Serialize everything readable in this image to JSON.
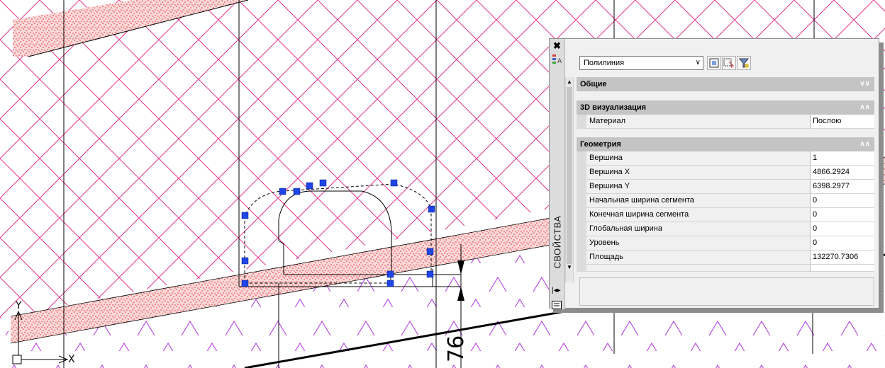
{
  "drawing": {
    "dimension_value": "76",
    "ucs_y_label": "Y",
    "ucs_x_label": "X"
  },
  "palette": {
    "title": "СВОЙСТВА",
    "object_type": "Полилиния",
    "categories": {
      "general": {
        "label": "Общие"
      },
      "visualization": {
        "label": "3D визуализация"
      },
      "geometry": {
        "label": "Геометрия"
      }
    },
    "visualization_props": [
      {
        "name": "Материал",
        "value": "Послою"
      }
    ],
    "geometry_props": [
      {
        "name": "Вершина",
        "value": "1"
      },
      {
        "name": "Вершина X",
        "value": "4866.2924"
      },
      {
        "name": "Вершина Y",
        "value": "6398.2977"
      },
      {
        "name": "Начальная ширина сегмента",
        "value": "0"
      },
      {
        "name": "Конечная ширина сегмента",
        "value": "0"
      },
      {
        "name": "Глобальная ширина",
        "value": "0"
      },
      {
        "name": "Уровень",
        "value": "0"
      },
      {
        "name": "Площадь",
        "value": "132270.7306"
      }
    ]
  },
  "colors": {
    "hatch_cross": "#e0338c",
    "hatch_sand": "#e03030",
    "hatch_chevron": "#b030e0",
    "grip": "#1f45e6"
  }
}
